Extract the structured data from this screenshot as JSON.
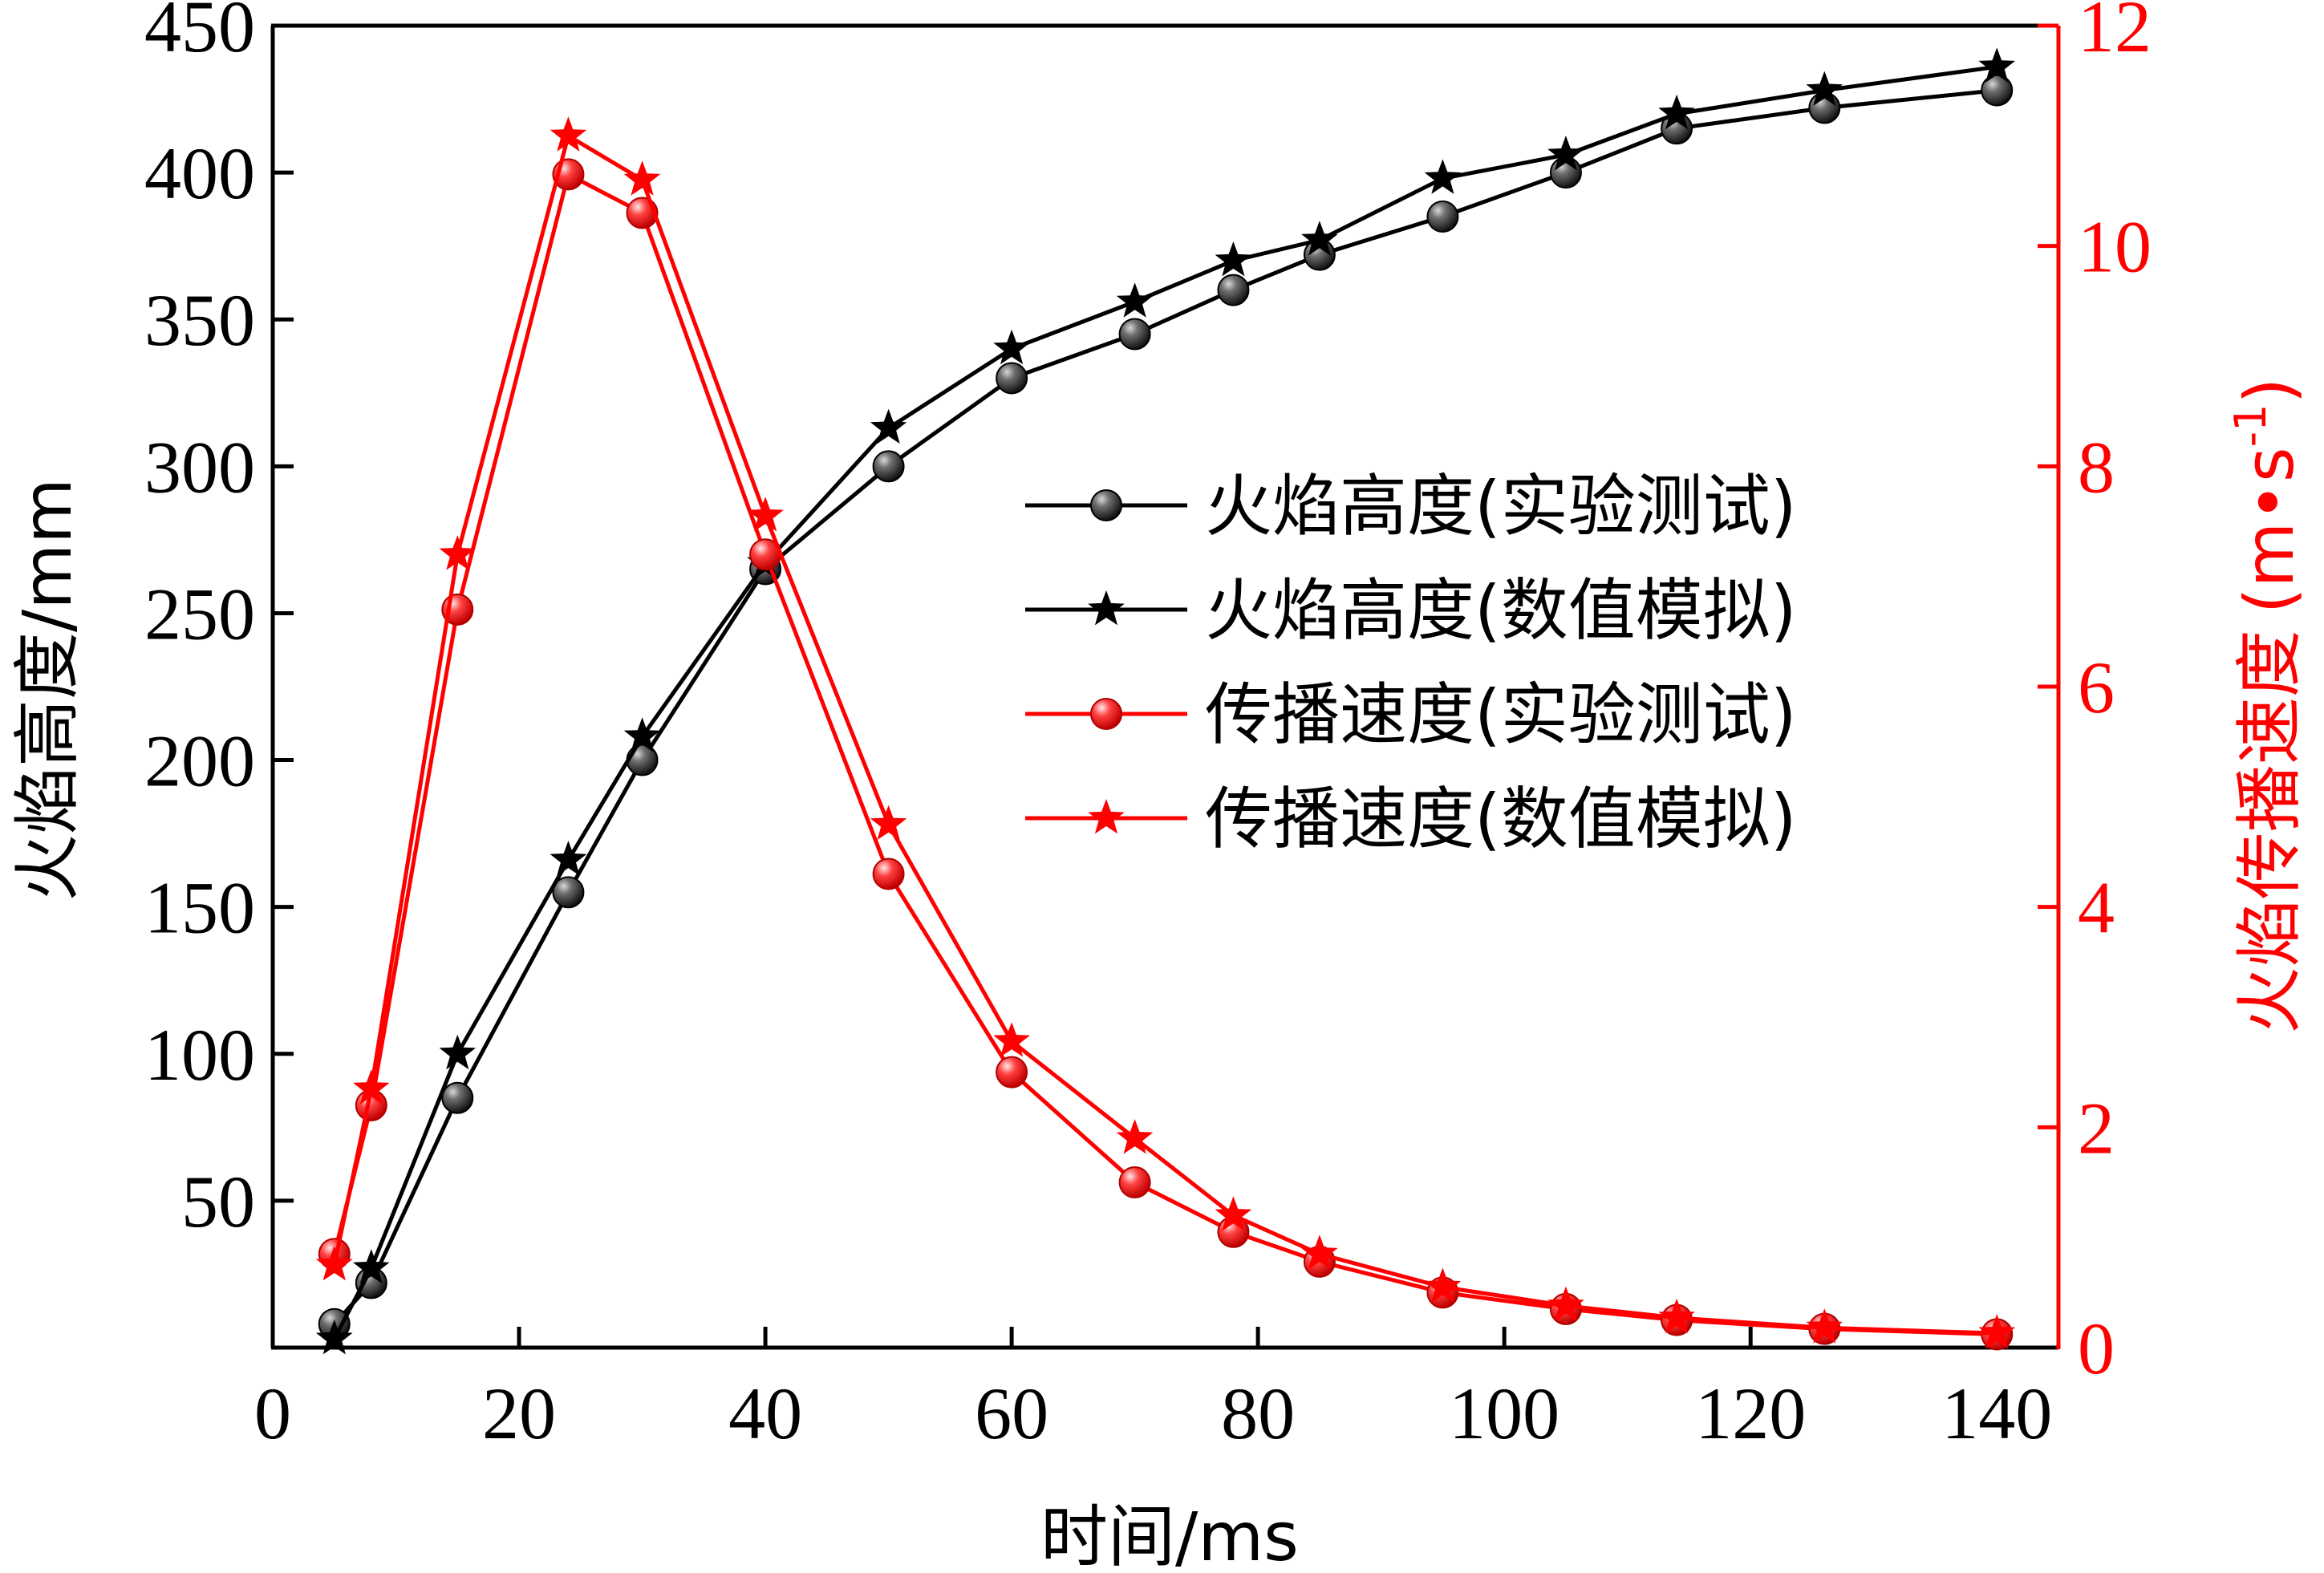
{
  "chart_data": {
    "type": "line",
    "xlabel": "时间/ms",
    "ylabel_left": "火焰高度/mm",
    "ylabel_right": "火焰传播速度",
    "ylabel_right_unit": "(m•s",
    "ylabel_right_exp": "-1",
    "ylabel_right_close": ")",
    "xlim": [
      0,
      145
    ],
    "xticks": [
      0,
      20,
      40,
      60,
      80,
      100,
      120,
      140
    ],
    "ylim_left": [
      0,
      450
    ],
    "yticks_left": [
      50,
      100,
      150,
      200,
      250,
      300,
      350,
      400,
      450
    ],
    "ylim_right": [
      0,
      12
    ],
    "yticks_right": [
      0,
      2,
      4,
      6,
      8,
      10,
      12
    ],
    "grid": false,
    "legend_position": "center-right",
    "colors": {
      "black": "#000000",
      "red": "#ff0000"
    },
    "series": [
      {
        "name": "火焰高度(实验测试)",
        "axis": "left",
        "color": "#000000",
        "marker": "circle",
        "x": [
          5,
          8,
          15,
          24,
          30,
          40,
          50,
          60,
          70,
          78,
          85,
          95,
          105,
          114,
          126,
          140
        ],
        "y": [
          8,
          22,
          85,
          155,
          200,
          265,
          300,
          330,
          345,
          360,
          372,
          385,
          400,
          415,
          422,
          428
        ]
      },
      {
        "name": "火焰高度(数值模拟)",
        "axis": "left",
        "color": "#000000",
        "marker": "star",
        "x": [
          5,
          8,
          15,
          24,
          30,
          40,
          50,
          60,
          70,
          78,
          85,
          95,
          105,
          114,
          126,
          140
        ],
        "y": [
          3,
          27,
          100,
          166,
          208,
          267,
          313,
          340,
          356,
          370,
          377,
          398,
          406,
          420,
          428,
          436
        ]
      },
      {
        "name": "传播速度(实验测试)",
        "axis": "right",
        "color": "#ff0000",
        "marker": "circle",
        "x": [
          5,
          8,
          15,
          24,
          30,
          40,
          50,
          60,
          70,
          78,
          85,
          95,
          105,
          114,
          126,
          140
        ],
        "y": [
          0.85,
          2.2,
          6.7,
          10.65,
          10.3,
          7.2,
          4.3,
          2.5,
          1.5,
          1.05,
          0.78,
          0.5,
          0.35,
          0.25,
          0.17,
          0.12
        ]
      },
      {
        "name": "传播速度(数值模拟)",
        "axis": "right",
        "color": "#ff0000",
        "marker": "star",
        "x": [
          5,
          8,
          15,
          24,
          30,
          40,
          50,
          60,
          70,
          78,
          85,
          95,
          105,
          114,
          126,
          140
        ],
        "y": [
          0.75,
          2.35,
          7.2,
          11.0,
          10.6,
          7.55,
          4.75,
          2.78,
          1.9,
          1.2,
          0.85,
          0.55,
          0.38,
          0.27,
          0.18,
          0.13
        ]
      }
    ]
  }
}
